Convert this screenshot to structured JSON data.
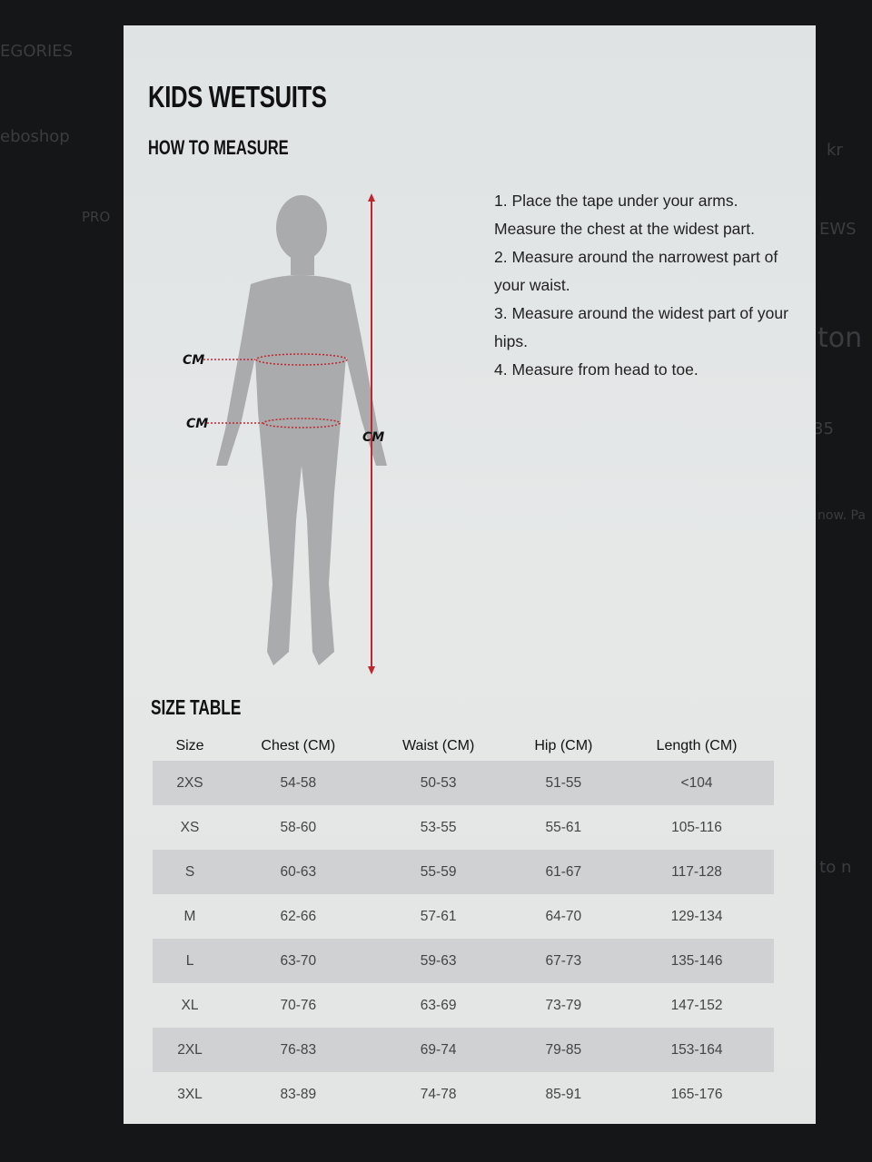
{
  "background_fragments": [
    "EGORIES",
    "eboshop",
    "PRO",
    "EWS",
    "kr",
    "ton",
    "35",
    "now. Pa",
    "d to n"
  ],
  "title": "KIDS WETSUITS",
  "how_to_measure": {
    "heading": "HOW TO MEASURE",
    "steps": [
      "1. Place the tape under your arms. Measure the chest at the widest part.",
      "2. Measure around the narrowest part of your waist.",
      "3. Measure around the widest part of your hips.",
      "4. Measure from head to toe."
    ],
    "labels": {
      "chest": "CM",
      "waist": "CM",
      "height": "CM"
    },
    "accent_color": "#c0262d"
  },
  "size_table": {
    "heading": "SIZE TABLE",
    "columns": [
      "Size",
      "Chest (CM)",
      "Waist (CM)",
      "Hip (CM)",
      "Length (CM)"
    ],
    "rows": [
      [
        "2XS",
        "54-58",
        "50-53",
        "51-55",
        "<104"
      ],
      [
        "XS",
        "58-60",
        "53-55",
        "55-61",
        "105-116"
      ],
      [
        "S",
        "60-63",
        "55-59",
        "61-67",
        "117-128"
      ],
      [
        "M",
        "62-66",
        "57-61",
        "64-70",
        "129-134"
      ],
      [
        "L",
        "63-70",
        "59-63",
        "67-73",
        "135-146"
      ],
      [
        "XL",
        "70-76",
        "63-69",
        "73-79",
        "147-152"
      ],
      [
        "2XL",
        "76-83",
        "69-74",
        "79-85",
        "153-164"
      ],
      [
        "3XL",
        "83-89",
        "74-78",
        "85-91",
        "165-176"
      ]
    ]
  }
}
